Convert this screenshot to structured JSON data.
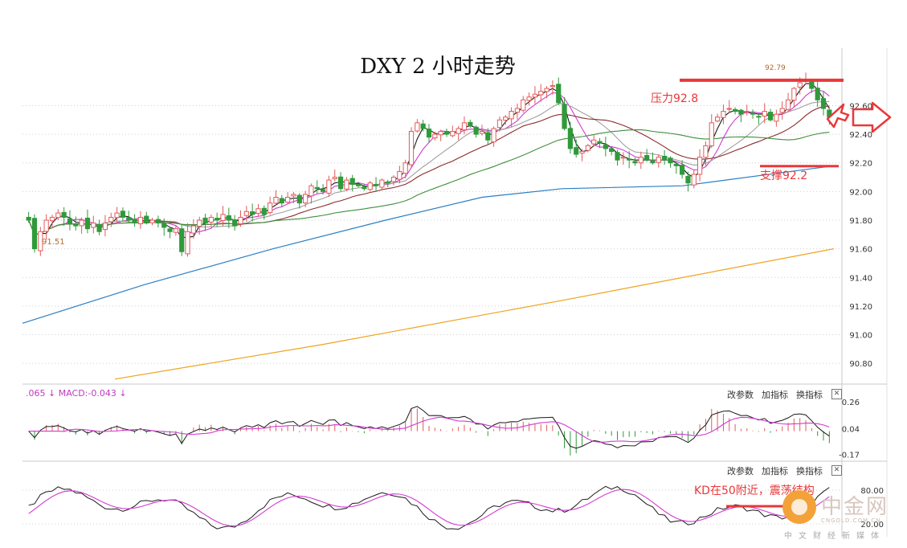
{
  "title": "DXY 2 小时走势",
  "colors": {
    "up_candle": "#e25a5a",
    "down_candle": "#2f9a3a",
    "ma_black": "#1a1a1a",
    "ma_magenta": "#d23ad2",
    "ma_gray": "#a0a0a0",
    "ma_darkred": "#8b2a2a",
    "ma_green": "#3f8f3f",
    "ma_blue": "#2b7fc4",
    "ma_orange": "#f0a21c",
    "annotation_red": "#e8383a",
    "grid": "#cfcfcf"
  },
  "indicators": {
    "macd_legend": ".065 ↓ MACD:-0.043 ↓",
    "buttons": [
      "改参数",
      "加指标",
      "换指标"
    ],
    "close_symbol": "✕"
  },
  "annotations": {
    "resistance": "压力92.8",
    "support": "支撑92.2",
    "kd_note": "KD在50附近，震荡结构",
    "low_label": "91.51",
    "high_label": "92.79"
  },
  "watermark": {
    "name": "中金网",
    "url": "CNGOLD.COM.CN",
    "subtitle": "中文财经新媒体"
  },
  "chart_data": [
    {
      "type": "candlestick",
      "title": "DXY 2 小时走势",
      "ylim": [
        90.7,
        92.9
      ],
      "y_ticks": [
        "92.60",
        "92.40",
        "92.20",
        "92.00",
        "91.80",
        "91.60",
        "91.40",
        "91.20",
        "91.00",
        "90.80"
      ],
      "resistance": 92.8,
      "support": 92.2,
      "ohlc_closes": [
        91.8,
        91.6,
        91.72,
        91.8,
        91.82,
        91.85,
        91.82,
        91.78,
        91.76,
        91.8,
        91.74,
        91.78,
        91.72,
        91.78,
        91.82,
        91.85,
        91.82,
        91.8,
        91.78,
        91.82,
        91.78,
        91.8,
        91.78,
        91.75,
        91.72,
        91.74,
        91.58,
        91.72,
        91.76,
        91.8,
        91.78,
        91.82,
        91.8,
        91.84,
        91.8,
        91.76,
        91.82,
        91.86,
        91.84,
        91.88,
        91.84,
        91.92,
        91.96,
        91.92,
        91.96,
        91.98,
        91.92,
        91.98,
        92.04,
        92.02,
        92.0,
        92.08,
        92.1,
        92.02,
        92.08,
        92.05,
        92.04,
        92.02,
        92.06,
        92.04,
        92.08,
        92.06,
        92.1,
        92.14,
        92.2,
        92.42,
        92.48,
        92.44,
        92.38,
        92.4,
        92.42,
        92.4,
        92.42,
        92.44,
        92.48,
        92.46,
        92.4,
        92.42,
        92.36,
        92.44,
        92.5,
        92.52,
        92.56,
        92.58,
        92.64,
        92.66,
        92.68,
        92.7,
        92.72,
        92.74,
        92.62,
        92.44,
        92.3,
        92.26,
        92.28,
        92.32,
        92.36,
        92.34,
        92.3,
        92.28,
        92.22,
        92.24,
        92.22,
        92.2,
        92.24,
        92.22,
        92.2,
        92.24,
        92.22,
        92.2,
        92.18,
        92.12,
        92.06,
        92.12,
        92.24,
        92.32,
        92.48,
        92.52,
        92.56,
        92.58,
        92.56,
        92.54,
        92.56,
        92.54,
        92.52,
        92.56,
        92.5,
        92.54,
        92.58,
        92.64,
        92.72,
        92.76,
        92.78,
        92.72,
        92.64,
        92.58,
        92.52
      ],
      "low_label_value": 91.51,
      "high_label_value": 92.79
    },
    {
      "type": "line",
      "name": "MACD",
      "ylim": [
        -0.2,
        0.3
      ],
      "y_ticks": [
        "0.26",
        "0.04",
        "-0.17"
      ],
      "value": -0.043
    },
    {
      "type": "line",
      "name": "KD",
      "ylim": [
        0,
        100
      ],
      "y_ticks": [
        "80.00",
        "20.00"
      ]
    }
  ]
}
